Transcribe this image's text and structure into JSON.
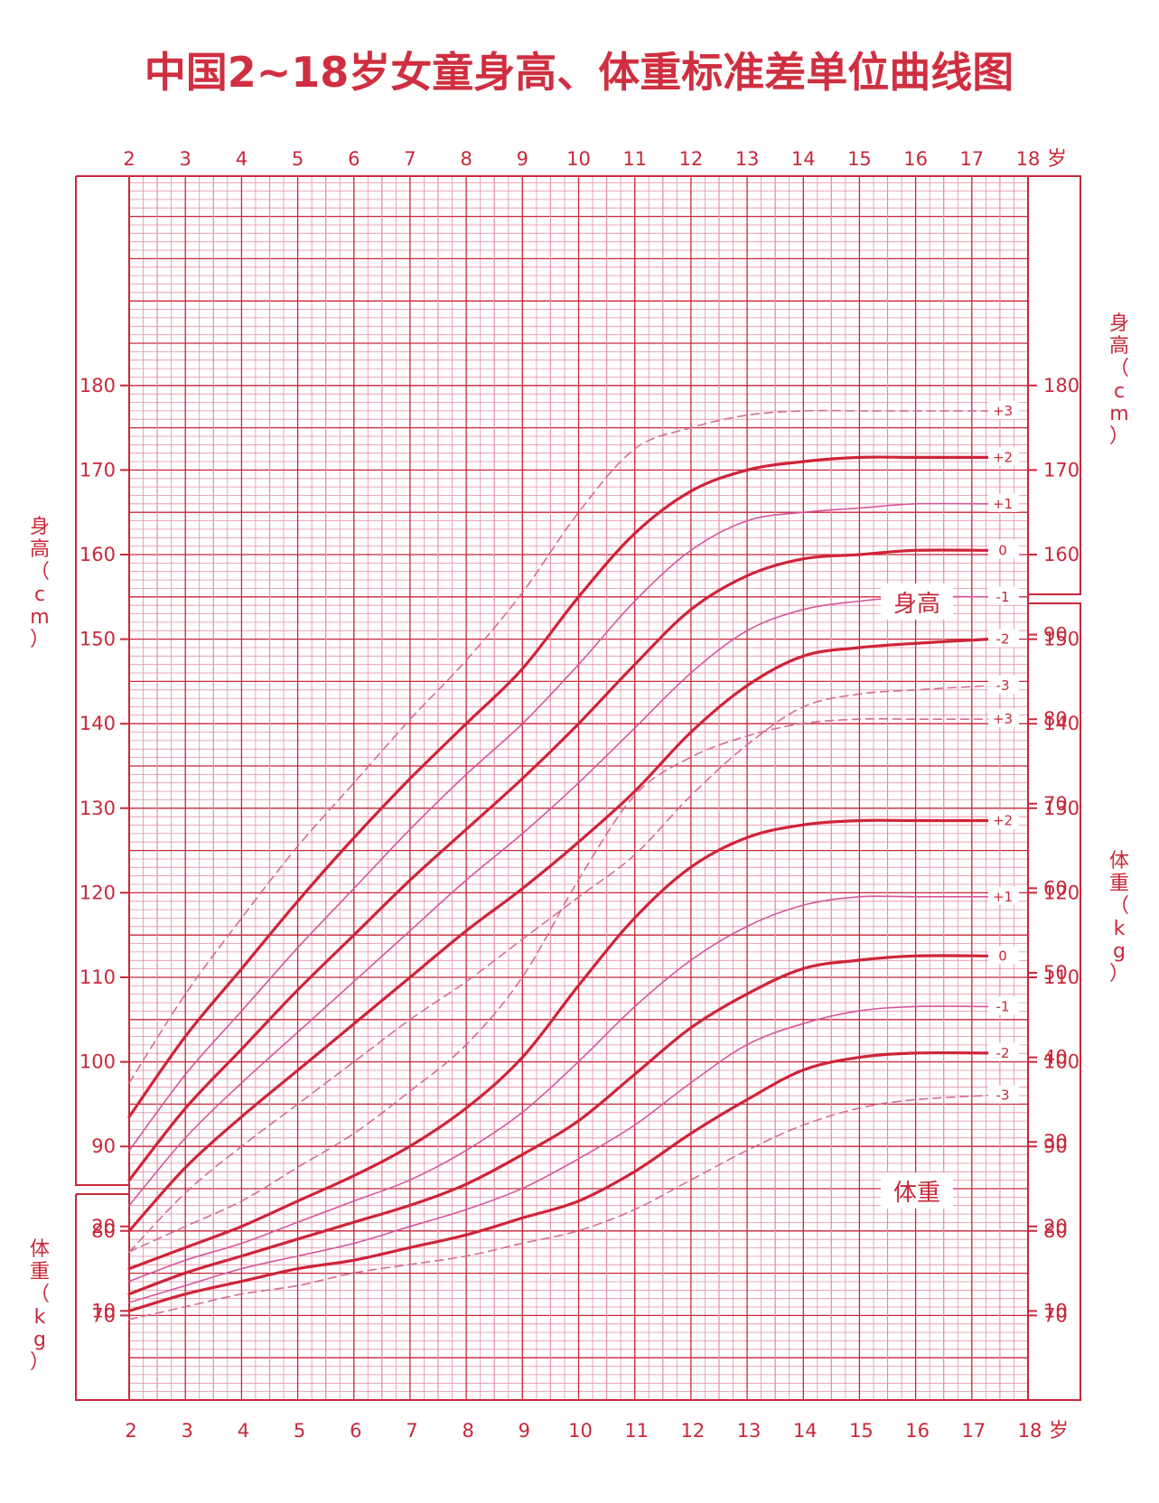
{
  "chart_data": {
    "type": "line",
    "title": "中国2~18岁女童身高、体重标准差单位曲线图",
    "x_unit": "岁",
    "x_ticks": [
      "2",
      "3",
      "4",
      "5",
      "6",
      "7",
      "8",
      "9",
      "10",
      "11",
      "12",
      "13",
      "14",
      "15",
      "16",
      "17",
      "18"
    ],
    "xlim": [
      2,
      18
    ],
    "height_axis": {
      "name": "身高（cm）",
      "ylim": [
        60,
        185
      ],
      "ticks": [
        "70",
        "80",
        "90",
        "100",
        "110",
        "120",
        "130",
        "140",
        "150",
        "160",
        "170",
        "180"
      ]
    },
    "weight_axis": {
      "name": "体重（kg）",
      "ylim": [
        0,
        95
      ],
      "ticks_left": [
        "10",
        "20"
      ],
      "ticks_right": [
        "10",
        "20",
        "30",
        "40",
        "50",
        "60",
        "70",
        "80",
        "90"
      ]
    },
    "height_label": "身高",
    "weight_label": "体重",
    "x": [
      2,
      3,
      4,
      5,
      6,
      7,
      8,
      9,
      10,
      11,
      12,
      13,
      14,
      15,
      16,
      17.3
    ],
    "height_series": [
      {
        "name": "+3",
        "values": [
          97.5,
          108,
          117,
          125.5,
          133,
          140.5,
          147.5,
          155.5,
          165,
          172.5,
          175,
          176.5,
          177,
          177,
          177,
          177
        ]
      },
      {
        "name": "+2",
        "values": [
          93.5,
          103,
          111,
          119,
          126.5,
          133.5,
          140,
          146.5,
          155,
          162.5,
          167.5,
          170,
          171,
          171.5,
          171.5,
          171.5
        ]
      },
      {
        "name": "+1",
        "values": [
          89.5,
          98.5,
          106,
          113.5,
          120.5,
          127.5,
          134,
          140,
          147,
          154.5,
          160.5,
          164,
          165,
          165.5,
          166,
          166
        ]
      },
      {
        "name": "0",
        "values": [
          86,
          94.5,
          101.5,
          108.5,
          115,
          121.5,
          127.5,
          133.5,
          140,
          147,
          153.5,
          157.5,
          159.5,
          160,
          160.5,
          160.5
        ]
      },
      {
        "name": "-1",
        "values": [
          83,
          91,
          97.5,
          103.5,
          109.5,
          115.5,
          121.5,
          127,
          133,
          139.5,
          146,
          151,
          153.5,
          154.5,
          155,
          155
        ]
      },
      {
        "name": "-2",
        "values": [
          80,
          87.5,
          93.5,
          99,
          104.5,
          110,
          115.5,
          120.5,
          126,
          132,
          139,
          144.5,
          148,
          149,
          149.5,
          150
        ]
      },
      {
        "name": "-3",
        "values": [
          77.5,
          84.5,
          90,
          95,
          100,
          105,
          109.5,
          114.5,
          119.5,
          124.5,
          131.5,
          137.5,
          142,
          143.5,
          144,
          144.5
        ]
      }
    ],
    "weight_series": [
      {
        "name": "+3",
        "values": [
          17,
          20,
          23,
          27,
          31,
          36,
          41.5,
          49.5,
          61,
          71,
          75.5,
          78,
          79.5,
          80,
          80,
          80
        ]
      },
      {
        "name": "+2",
        "values": [
          15,
          17.5,
          20,
          23,
          26,
          29.5,
          34,
          40,
          48.5,
          56.5,
          62.5,
          66,
          67.5,
          68,
          68,
          68
        ]
      },
      {
        "name": "+1",
        "values": [
          13.5,
          16,
          18,
          20.5,
          23,
          25.5,
          29,
          33.5,
          39.5,
          46,
          51.5,
          55.5,
          58,
          59,
          59,
          59
        ]
      },
      {
        "name": "0",
        "values": [
          12,
          14.5,
          16.5,
          18.5,
          20.5,
          22.5,
          25,
          28.5,
          32.5,
          38,
          43.5,
          47.5,
          50.5,
          51.5,
          52,
          52
        ]
      },
      {
        "name": "-1",
        "values": [
          11,
          13,
          15,
          16.5,
          18,
          20,
          22,
          24.5,
          28,
          32,
          37,
          41.5,
          44,
          45.5,
          46,
          46
        ]
      },
      {
        "name": "-2",
        "values": [
          10,
          12,
          13.5,
          15,
          16,
          17.5,
          19,
          21,
          23,
          26.5,
          31,
          35,
          38.5,
          40,
          40.5,
          40.5
        ]
      },
      {
        "name": "-3",
        "values": [
          9,
          10.5,
          12,
          13,
          14.5,
          15.5,
          16.5,
          18,
          19.5,
          22,
          25.5,
          29,
          32,
          34,
          35,
          35.5
        ]
      }
    ],
    "grid": true,
    "colors": {
      "text": "#c8283a",
      "title": "#cf2f40",
      "major_grid": "#c8283a",
      "minor_grid": "#e58fa8",
      "curve_main": "#cf2438",
      "curve_mid": "#d5569b",
      "curve_dash": "#d46c97"
    }
  }
}
